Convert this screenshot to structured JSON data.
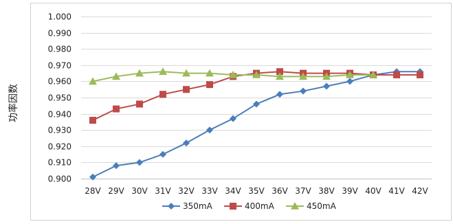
{
  "chart_data": {
    "type": "line",
    "title": "",
    "xlabel": "",
    "ylabel": "功率因数",
    "ylim": [
      0.9,
      1.0
    ],
    "yticks": [
      "1.000",
      "0.990",
      "0.980",
      "0.970",
      "0.960",
      "0.950",
      "0.940",
      "0.930",
      "0.920",
      "0.910",
      "0.900"
    ],
    "categories": [
      "28V",
      "29V",
      "30V",
      "31V",
      "32V",
      "33V",
      "34V",
      "35V",
      "36V",
      "37V",
      "38V",
      "39V",
      "40V",
      "41V",
      "42V"
    ],
    "grid": true,
    "legend_position": "bottom",
    "series": [
      {
        "name": "350mA",
        "color": "#4a7ebb",
        "marker": "diamond",
        "values": [
          0.901,
          0.908,
          0.91,
          0.915,
          0.922,
          0.93,
          0.937,
          0.946,
          0.952,
          0.954,
          0.957,
          0.96,
          0.964,
          0.966,
          0.966
        ]
      },
      {
        "name": "400mA",
        "color": "#be4b48",
        "marker": "square",
        "values": [
          0.936,
          0.943,
          0.946,
          0.952,
          0.955,
          0.958,
          0.963,
          0.965,
          0.966,
          0.965,
          0.965,
          0.965,
          0.964,
          0.964,
          0.964
        ]
      },
      {
        "name": "450mA",
        "color": "#9bbb59",
        "marker": "triangle",
        "values": [
          0.96,
          0.963,
          0.965,
          0.966,
          0.965,
          0.965,
          0.964,
          0.964,
          0.963,
          0.963,
          0.963,
          0.964,
          0.964,
          null,
          null
        ]
      }
    ]
  }
}
